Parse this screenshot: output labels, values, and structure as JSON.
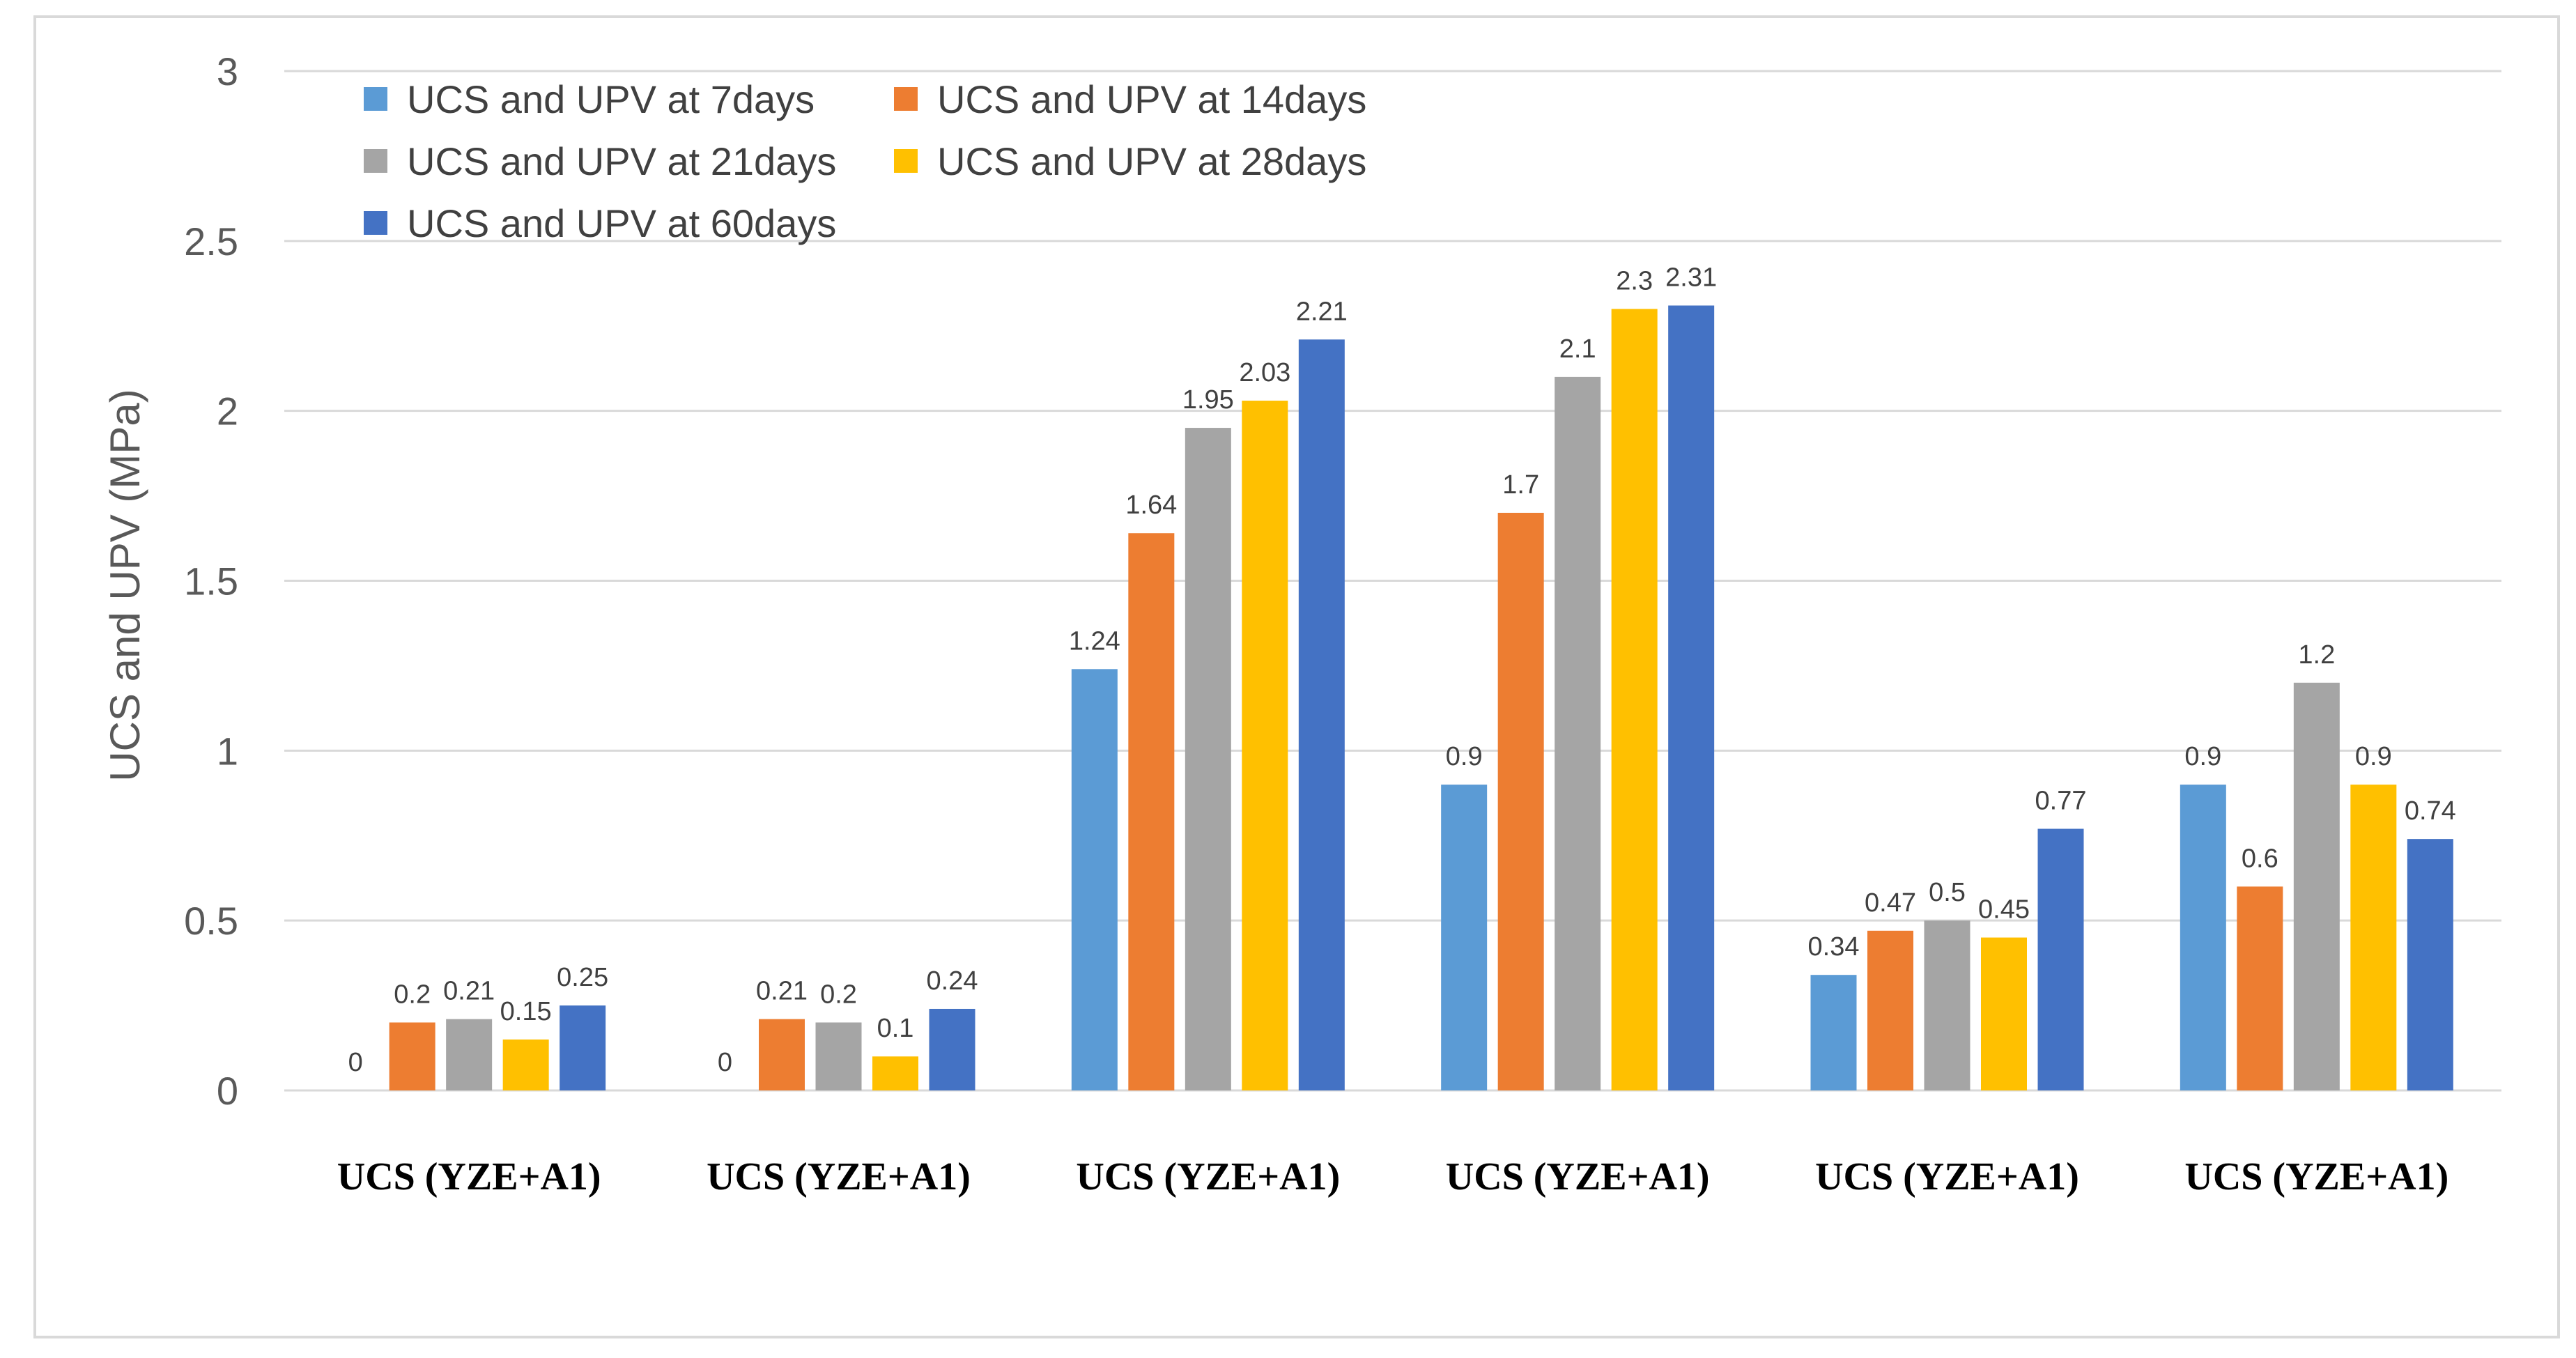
{
  "chart_data": {
    "type": "bar",
    "title": "",
    "xlabel": "",
    "ylabel": "UCS and UPV  (MPa)",
    "ylim": [
      0,
      3
    ],
    "yticks": [
      0,
      0.5,
      1,
      1.5,
      2,
      2.5,
      3
    ],
    "ytick_labels": [
      "0",
      "0.5",
      "1",
      "1.5",
      "2",
      "2.5",
      "3"
    ],
    "grid": true,
    "legend_position": "top-left",
    "categories": [
      "UCS (YZE+A1)",
      "UCS (YZE+A1)",
      "UCS (YZE+A1)",
      "UCS (YZE+A1)",
      "UCS (YZE+A1)",
      "UCS (YZE+A1)"
    ],
    "series": [
      {
        "name": "UCS and UPV at 7days",
        "color": "#5B9BD5",
        "values": [
          0,
          0,
          1.24,
          0.9,
          0.34,
          0.9
        ],
        "labels": [
          "0",
          "0",
          "1.24",
          "0.9",
          "0.34",
          "0.9"
        ]
      },
      {
        "name": "UCS and UPV at 14days",
        "color": "#ED7D31",
        "values": [
          0.2,
          0.21,
          1.64,
          1.7,
          0.47,
          0.6
        ],
        "labels": [
          "0.2",
          "0.21",
          "1.64",
          "1.7",
          "0.47",
          "0.6"
        ]
      },
      {
        "name": "UCS and UPV at 21days",
        "color": "#A5A5A5",
        "values": [
          0.21,
          0.2,
          1.95,
          2.1,
          0.5,
          1.2
        ],
        "labels": [
          "0.21",
          "0.2",
          "1.95",
          "2.1",
          "0.5",
          "1.2"
        ]
      },
      {
        "name": "UCS and UPV at 28days",
        "color": "#FFC000",
        "values": [
          0.15,
          0.1,
          2.03,
          2.3,
          0.45,
          0.9
        ],
        "labels": [
          "0.15",
          "0.1",
          "2.03",
          "2.3",
          "0.45",
          "0.9"
        ]
      },
      {
        "name": "UCS and UPV at 60days",
        "color": "#4472C4",
        "values": [
          0.25,
          0.24,
          2.21,
          2.31,
          0.77,
          0.74
        ],
        "labels": [
          "0.25",
          "0.24",
          "2.21",
          "2.31",
          "0.77",
          "0.74"
        ]
      }
    ]
  }
}
